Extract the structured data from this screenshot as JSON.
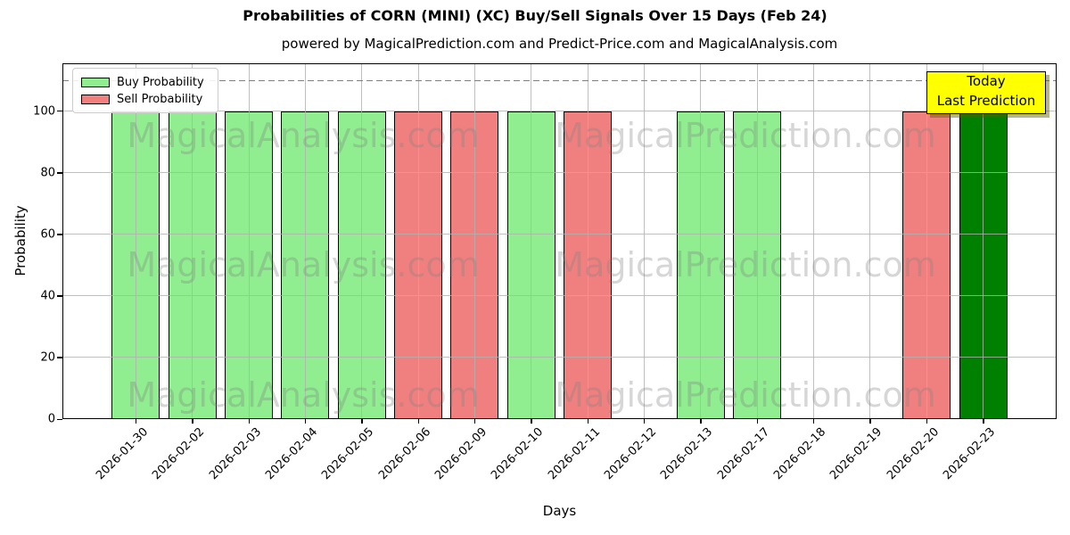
{
  "header": {
    "title": "Probabilities of CORN (MINI) (XC) Buy/Sell Signals Over 15 Days (Feb 24)",
    "subtitle": "powered by MagicalPrediction.com and Predict-Price.com and MagicalAnalysis.com"
  },
  "legend": [
    {
      "label": "Buy Probability",
      "color": "#90EE90"
    },
    {
      "label": "Sell Probability",
      "color": "#F08080"
    }
  ],
  "annotation": {
    "line1": "Today",
    "line2": "Last Prediction",
    "bg": "#FFFF00"
  },
  "watermarks": [
    "MagicalAnalysis.com",
    "MagicalPrediction.com"
  ],
  "axes": {
    "xlabel": "Days",
    "ylabel": "Probability",
    "yticks": [
      0,
      20,
      40,
      60,
      80,
      100
    ],
    "dashed_line_y": 110
  },
  "chart_data": {
    "type": "bar",
    "title": "Probabilities of CORN (MINI) (XC) Buy/Sell Signals Over 15 Days (Feb 24)",
    "subtitle": "powered by MagicalPrediction.com and Predict-Price.com and MagicalAnalysis.com",
    "xlabel": "Days",
    "ylabel": "Probability",
    "ylim": [
      0,
      115.5
    ],
    "grid": true,
    "legend_position": "upper left",
    "categories": [
      "2026-01-30",
      "2026-02-02",
      "2026-02-03",
      "2026-02-04",
      "2026-02-05",
      "2026-02-06",
      "2026-02-09",
      "2026-02-10",
      "2026-02-11",
      "2026-02-12",
      "2026-02-13",
      "2026-02-17",
      "2026-02-18",
      "2026-02-19",
      "2026-02-20",
      "2026-02-23"
    ],
    "series": [
      {
        "name": "Buy Probability",
        "color": "#90EE90",
        "values": [
          100,
          100,
          100,
          100,
          100,
          0,
          0,
          100,
          0,
          0,
          100,
          100,
          0,
          0,
          0,
          0
        ]
      },
      {
        "name": "Sell Probability",
        "color": "#F08080",
        "values": [
          0,
          0,
          0,
          0,
          0,
          100,
          100,
          0,
          100,
          0,
          0,
          0,
          0,
          0,
          100,
          0
        ]
      },
      {
        "name": "Last Prediction",
        "color": "#008000",
        "values": [
          0,
          0,
          0,
          0,
          0,
          0,
          0,
          0,
          0,
          0,
          0,
          0,
          0,
          0,
          0,
          100
        ]
      }
    ],
    "dashed_line_y": 110
  }
}
